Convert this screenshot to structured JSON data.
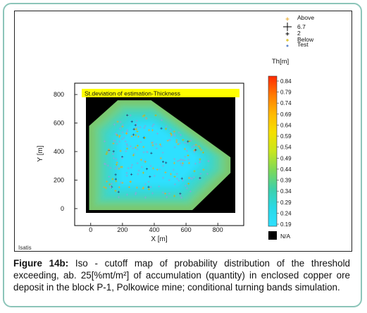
{
  "chart_data": {
    "type": "heatmap",
    "title": "St.deviation of estimation-Thickness",
    "xlabel": "X [m]",
    "ylabel": "Y [m]",
    "xlim": [
      -30,
      910
    ],
    "ylim": [
      -30,
      830
    ],
    "xticks": [
      0,
      200,
      400,
      600,
      800
    ],
    "yticks": [
      0,
      200,
      400,
      600,
      800
    ],
    "colorbar": {
      "title": "Th[m]",
      "range": [
        0.19,
        0.84
      ],
      "ticks": [
        "0.84",
        "0.79",
        "0.74",
        "0.69",
        "0.64",
        "0.59",
        "0.54",
        "0.49",
        "0.44",
        "0.39",
        "0.34",
        "0.29",
        "0.24",
        "0.19"
      ],
      "na_label": "N/A",
      "colors": [
        "#ff2a00",
        "#ff7a00",
        "#ffb800",
        "#f5e000",
        "#c8e61e",
        "#7ed957",
        "#3ed0a8",
        "#29d9e6",
        "#2fe0ff"
      ]
    },
    "legend": {
      "placement": "top-right",
      "items": [
        {
          "label": "Above",
          "color": "#e6a92b"
        },
        {
          "label": "6.7",
          "color": "#000000"
        },
        {
          "label": "2",
          "color": "#000000"
        },
        {
          "label": "Below",
          "color": "#d4b400"
        },
        {
          "label": "Test",
          "color": "#5f86c9"
        }
      ]
    },
    "deposit_outline_xy": [
      [
        -10,
        580
      ],
      [
        170,
        760
      ],
      [
        380,
        760
      ],
      [
        880,
        360
      ],
      [
        880,
        250
      ],
      [
        640,
        -10
      ],
      [
        -10,
        -10
      ]
    ],
    "no_data_color": "#000000"
  },
  "software_label": "Isatis",
  "caption": {
    "label": "Figure 14b:",
    "text": " Iso - cutoff map of probability distribution of the threshold exceeding, ab. 25[%mt/m²] of accumulation (quantity) in enclosed copper ore deposit in the block P-1, Polkowice mine; conditional turning bands simulation."
  }
}
